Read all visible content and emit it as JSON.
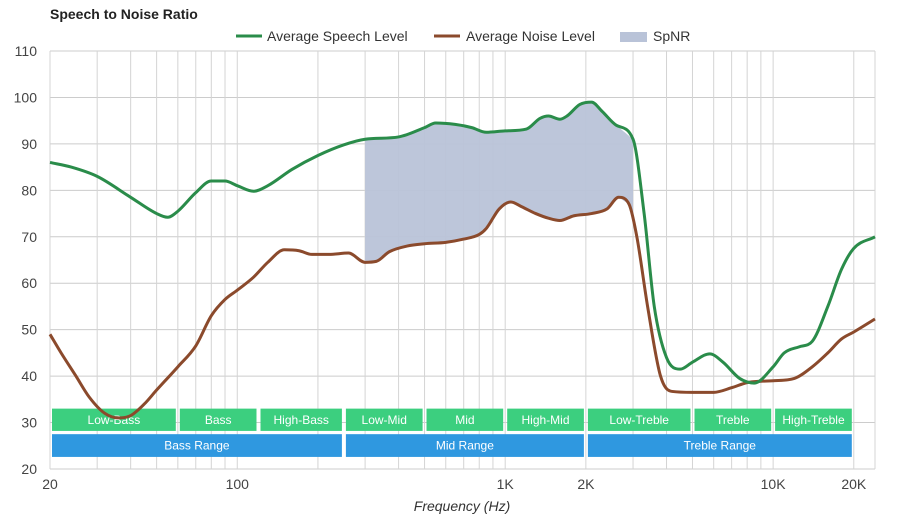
{
  "chart_data": {
    "type": "line",
    "title": "Speech to Noise Ratio",
    "xlabel": "Frequency (Hz)",
    "ylabel": "",
    "x_scale": "log",
    "xlim": [
      20,
      24000
    ],
    "ylim": [
      20,
      110
    ],
    "grid": true,
    "legend_position": "top-center",
    "y_ticks": [
      20,
      30,
      40,
      50,
      60,
      70,
      80,
      90,
      100,
      110
    ],
    "x_tick_labels": [
      {
        "value": 20,
        "label": "20"
      },
      {
        "value": 100,
        "label": "100"
      },
      {
        "value": 1000,
        "label": "1K"
      },
      {
        "value": 2000,
        "label": "2K"
      },
      {
        "value": 10000,
        "label": "10K"
      },
      {
        "value": 20000,
        "label": "20K"
      }
    ],
    "series": [
      {
        "name": "Average Speech Level",
        "color": "#2a8c4a",
        "points": [
          [
            20,
            86
          ],
          [
            24,
            85
          ],
          [
            30,
            83
          ],
          [
            40,
            78.5
          ],
          [
            50,
            75
          ],
          [
            55,
            74.2
          ],
          [
            60,
            75.5
          ],
          [
            70,
            79.5
          ],
          [
            80,
            82
          ],
          [
            90,
            82
          ],
          [
            100,
            81
          ],
          [
            115,
            79.8
          ],
          [
            130,
            81
          ],
          [
            160,
            84.5
          ],
          [
            200,
            87.5
          ],
          [
            250,
            89.8
          ],
          [
            300,
            91
          ],
          [
            400,
            91.5
          ],
          [
            500,
            93.5
          ],
          [
            550,
            94.5
          ],
          [
            650,
            94.2
          ],
          [
            750,
            93.5
          ],
          [
            850,
            92.5
          ],
          [
            1000,
            92.8
          ],
          [
            1200,
            93.2
          ],
          [
            1350,
            95.5
          ],
          [
            1450,
            96
          ],
          [
            1600,
            95.3
          ],
          [
            1700,
            96
          ],
          [
            1900,
            98.5
          ],
          [
            2100,
            99
          ],
          [
            2300,
            97
          ],
          [
            2600,
            94
          ],
          [
            3000,
            91
          ],
          [
            3300,
            75
          ],
          [
            3600,
            55
          ],
          [
            4000,
            44
          ],
          [
            4500,
            41.5
          ],
          [
            5000,
            43
          ],
          [
            5800,
            44.8
          ],
          [
            6500,
            43
          ],
          [
            7500,
            39.5
          ],
          [
            8500,
            38.5
          ],
          [
            10000,
            42
          ],
          [
            11000,
            45
          ],
          [
            12500,
            46.3
          ],
          [
            14000,
            47.5
          ],
          [
            16000,
            55
          ],
          [
            18000,
            63
          ],
          [
            20000,
            67.5
          ],
          [
            24000,
            70
          ]
        ]
      },
      {
        "name": "Average Noise Level",
        "color": "#8b4a2c",
        "points": [
          [
            20,
            49
          ],
          [
            22,
            45
          ],
          [
            25,
            40
          ],
          [
            28,
            35.5
          ],
          [
            32,
            32
          ],
          [
            36,
            31
          ],
          [
            40,
            31.5
          ],
          [
            45,
            34
          ],
          [
            50,
            37
          ],
          [
            60,
            42
          ],
          [
            70,
            46.5
          ],
          [
            80,
            53
          ],
          [
            90,
            56.5
          ],
          [
            100,
            58.5
          ],
          [
            115,
            61.3
          ],
          [
            130,
            64.5
          ],
          [
            150,
            67.2
          ],
          [
            170,
            67
          ],
          [
            190,
            66.2
          ],
          [
            220,
            66.2
          ],
          [
            260,
            66.5
          ],
          [
            300,
            64.5
          ],
          [
            330,
            64.7
          ],
          [
            370,
            66.8
          ],
          [
            430,
            68
          ],
          [
            500,
            68.5
          ],
          [
            600,
            68.8
          ],
          [
            700,
            69.5
          ],
          [
            800,
            70.5
          ],
          [
            850,
            71.8
          ],
          [
            950,
            76
          ],
          [
            1050,
            77.5
          ],
          [
            1150,
            76.5
          ],
          [
            1300,
            75
          ],
          [
            1450,
            74
          ],
          [
            1600,
            73.5
          ],
          [
            1800,
            74.5
          ],
          [
            2100,
            75
          ],
          [
            2400,
            76
          ],
          [
            2650,
            78.5
          ],
          [
            2900,
            77
          ],
          [
            3100,
            70
          ],
          [
            3400,
            55
          ],
          [
            3800,
            40
          ],
          [
            4200,
            36.7
          ],
          [
            5000,
            36.5
          ],
          [
            6000,
            36.5
          ],
          [
            7000,
            37.5
          ],
          [
            8000,
            38.6
          ],
          [
            9000,
            38.9
          ],
          [
            10000,
            39
          ],
          [
            12000,
            39.5
          ],
          [
            14000,
            42
          ],
          [
            16000,
            45
          ],
          [
            18000,
            48
          ],
          [
            20000,
            49.5
          ],
          [
            24000,
            52.3
          ]
        ]
      }
    ],
    "spnr": {
      "name": "SpNR",
      "color": "#b9c3d8",
      "range": [
        300,
        3000
      ]
    },
    "bands_row1": [
      {
        "label": "Low-Bass",
        "from": 20,
        "to": 60
      },
      {
        "label": "Bass",
        "from": 60,
        "to": 120
      },
      {
        "label": "High-Bass",
        "from": 120,
        "to": 250
      },
      {
        "label": "Low-Mid",
        "from": 250,
        "to": 500
      },
      {
        "label": "Mid",
        "from": 500,
        "to": 1000
      },
      {
        "label": "High-Mid",
        "from": 1000,
        "to": 2000
      },
      {
        "label": "Low-Treble",
        "from": 2000,
        "to": 5000
      },
      {
        "label": "Treble",
        "from": 5000,
        "to": 10000
      },
      {
        "label": "High-Treble",
        "from": 10000,
        "to": 20000
      }
    ],
    "bands_row2": [
      {
        "label": "Bass Range",
        "from": 20,
        "to": 250
      },
      {
        "label": "Mid Range",
        "from": 250,
        "to": 2000
      },
      {
        "label": "Treble Range",
        "from": 2000,
        "to": 20000
      }
    ],
    "band_colors": {
      "row1": "#3ccf7f",
      "row2": "#2f98e0"
    }
  }
}
